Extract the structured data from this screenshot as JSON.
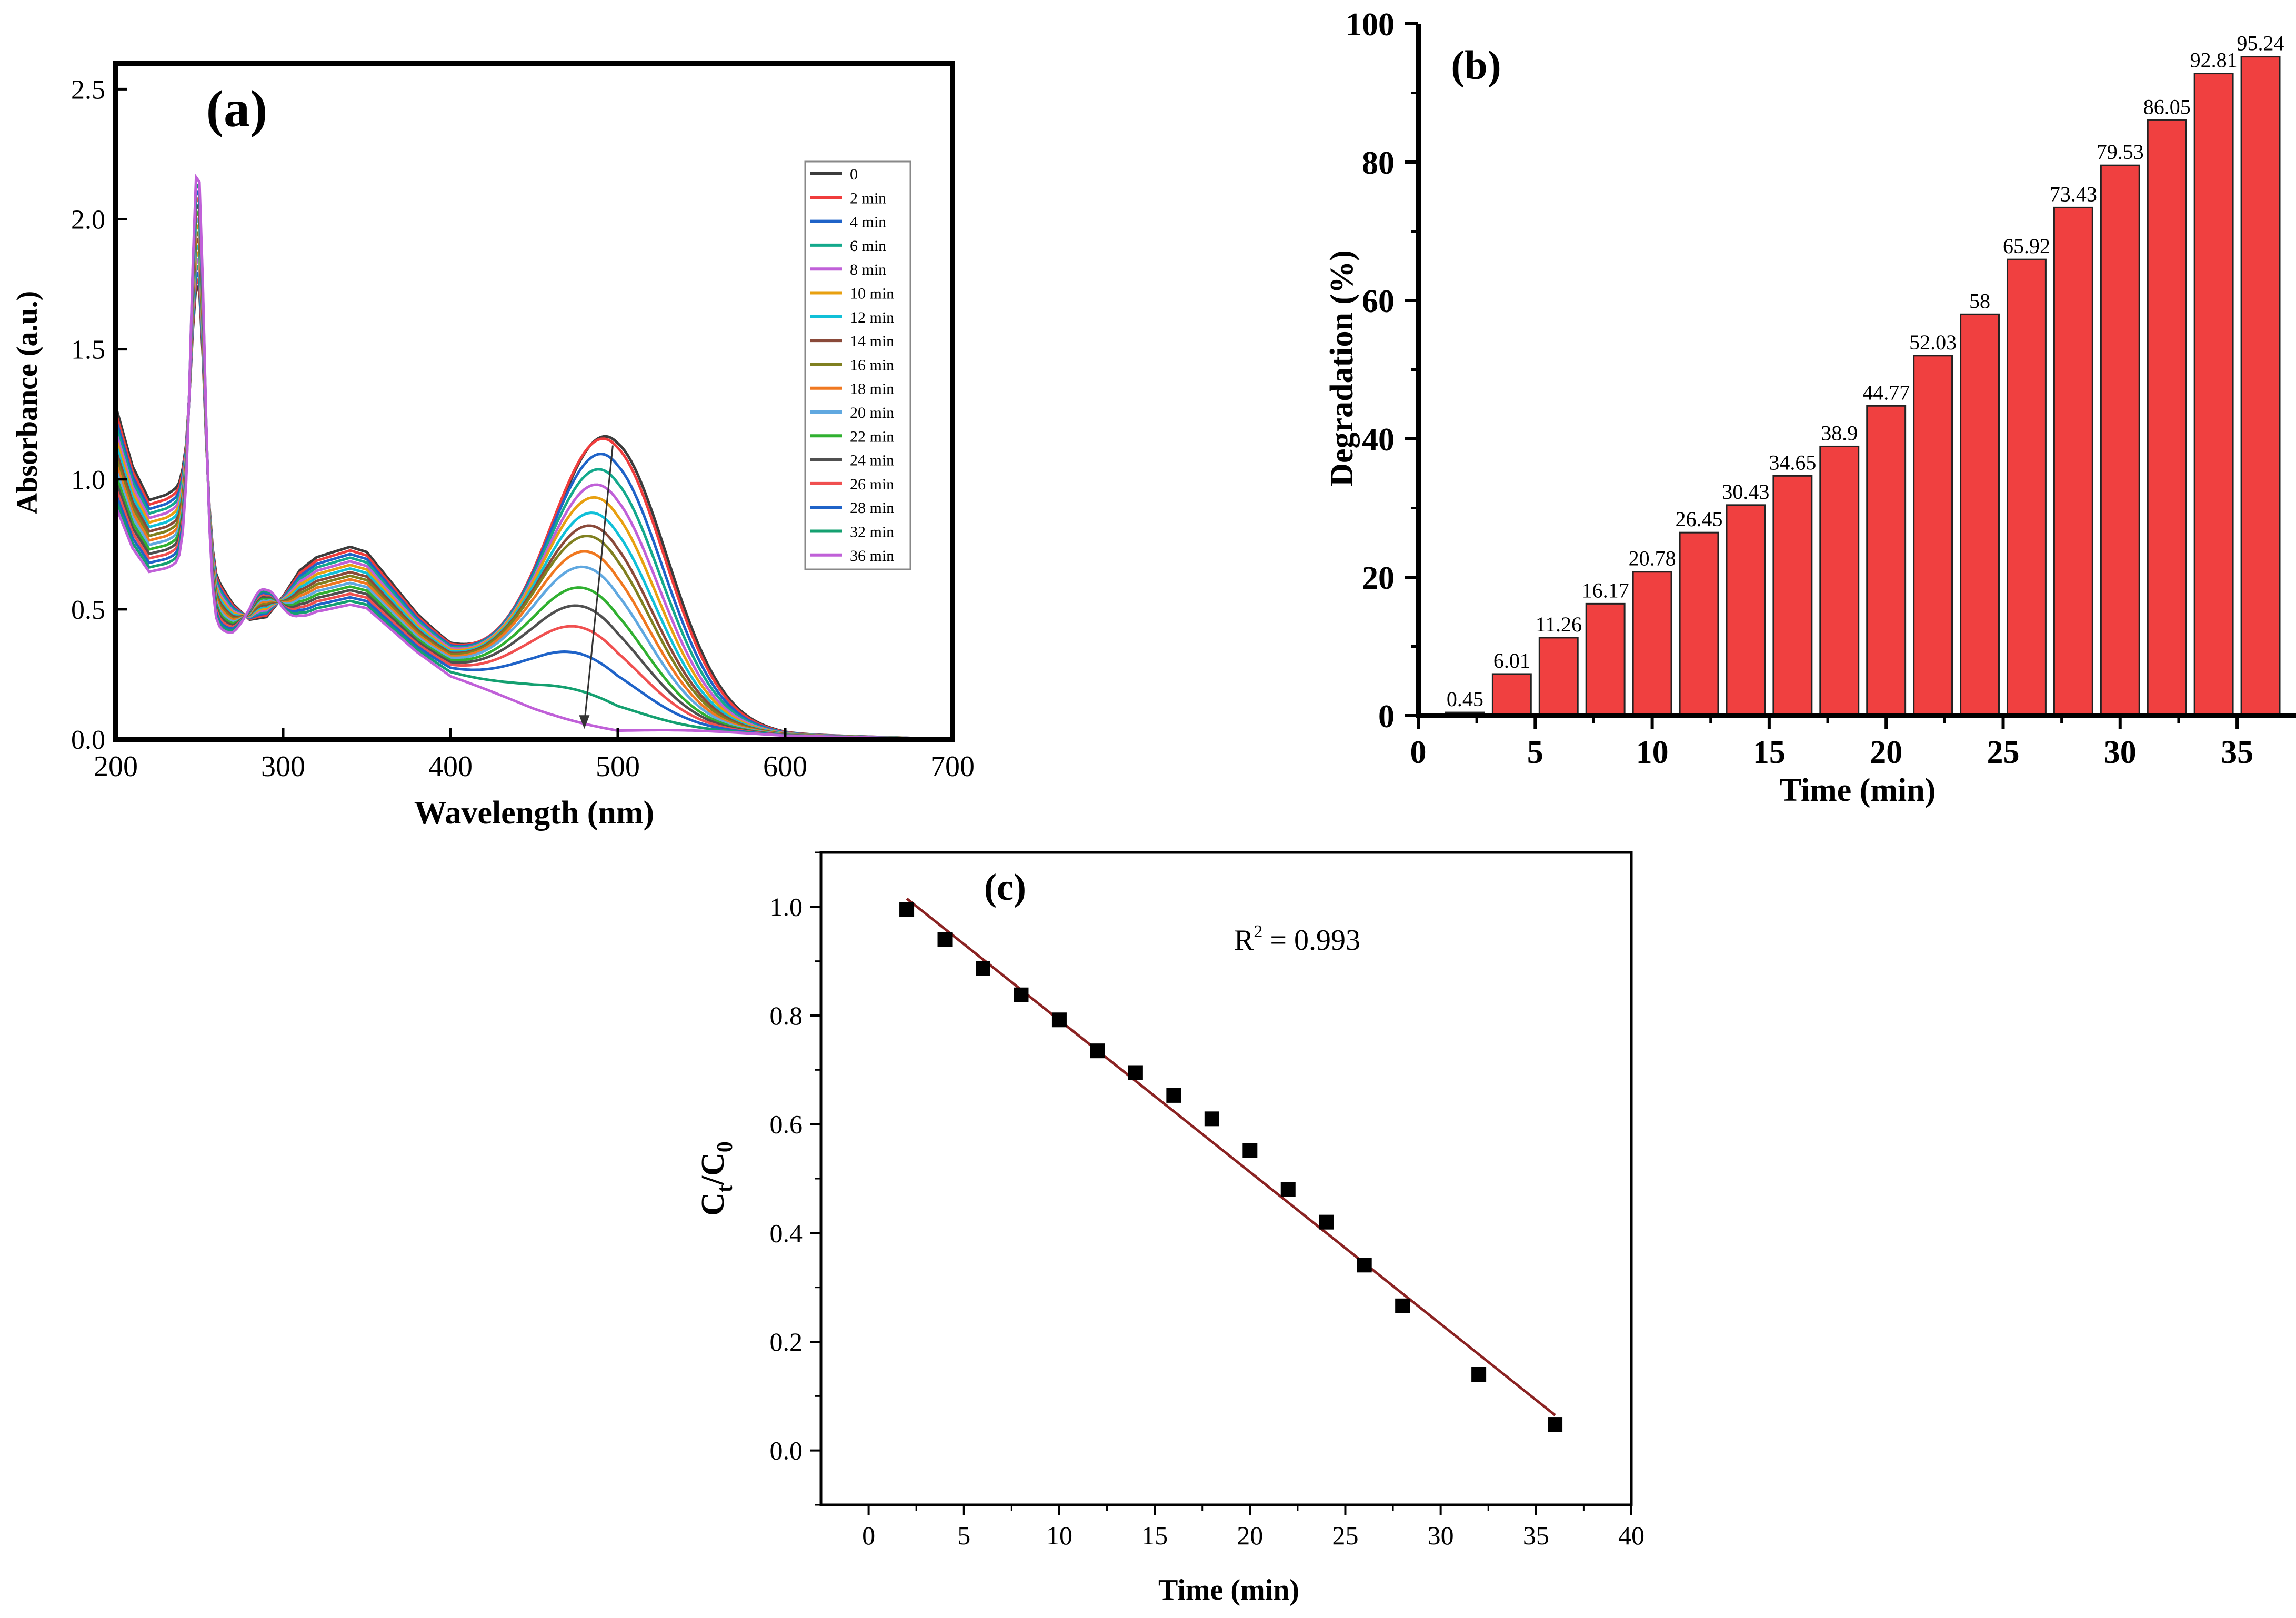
{
  "chart_data": [
    {
      "type": "line",
      "panel_label": "(a)",
      "xlabel": "Wavelength (nm)",
      "ylabel": "Absorbance (a.u.)",
      "xlim": [
        200,
        700
      ],
      "ylim": [
        0,
        2.6
      ],
      "xticks": [
        "200",
        "300",
        "400",
        "500",
        "600",
        "700"
      ],
      "yticks": [
        "0.0",
        "0.5",
        "1.0",
        "1.5",
        "2.0",
        "2.5"
      ],
      "legend_position": "top-right",
      "baseline_curve": {
        "x": [
          200,
          210,
          220,
          230,
          240,
          250,
          260,
          270,
          280,
          290,
          300,
          310,
          320,
          330,
          340,
          350,
          360,
          380,
          400,
          450,
          500,
          600,
          700
        ],
        "y": [
          1.28,
          1.05,
          0.92,
          0.94,
          0.98,
          0.85,
          0.62,
          0.52,
          0.46,
          0.47,
          0.55,
          0.65,
          0.7,
          0.72,
          0.74,
          0.72,
          0.64,
          0.48,
          0.35,
          0.2,
          0.08,
          0.02,
          0.0
        ]
      },
      "series": [
        {
          "name": "0",
          "color": "#3c3c3c",
          "band_peak": 1.15
        },
        {
          "name": "2 min",
          "color": "#f03c3c",
          "band_peak": 1.14
        },
        {
          "name": "4 min",
          "color": "#1f63c8",
          "band_peak": 1.08
        },
        {
          "name": "6 min",
          "color": "#14a98c",
          "band_peak": 1.02
        },
        {
          "name": "8 min",
          "color": "#c060d8",
          "band_peak": 0.96
        },
        {
          "name": "10 min",
          "color": "#e8a010",
          "band_peak": 0.91
        },
        {
          "name": "12 min",
          "color": "#10c0d8",
          "band_peak": 0.85
        },
        {
          "name": "14 min",
          "color": "#8a4a3a",
          "band_peak": 0.8
        },
        {
          "name": "16 min",
          "color": "#808020",
          "band_peak": 0.76
        },
        {
          "name": "18 min",
          "color": "#f07820",
          "band_peak": 0.7
        },
        {
          "name": "20 min",
          "color": "#60a8e0",
          "band_peak": 0.64
        },
        {
          "name": "22 min",
          "color": "#30b030",
          "band_peak": 0.56
        },
        {
          "name": "24 min",
          "color": "#505050",
          "band_peak": 0.49
        },
        {
          "name": "26 min",
          "color": "#f05050",
          "band_peak": 0.41
        },
        {
          "name": "28 min",
          "color": "#1f63c8",
          "band_peak": 0.31
        },
        {
          "name": "32 min",
          "color": "#14a070",
          "band_peak": 0.17
        },
        {
          "name": "36 min",
          "color": "#c060d8",
          "band_peak": 0.05
        }
      ]
    },
    {
      "type": "bar",
      "panel_label": "(b)",
      "xlabel": "Time (min)",
      "ylabel": "Degradation (%)",
      "xlim": [
        0,
        37
      ],
      "ylim": [
        0,
        100
      ],
      "xticks": [
        "0",
        "5",
        "10",
        "15",
        "20",
        "25",
        "30",
        "35"
      ],
      "yticks": [
        "0",
        "20",
        "40",
        "60",
        "80",
        "100"
      ],
      "x": [
        2,
        4,
        6,
        8,
        10,
        12,
        14,
        16,
        18,
        20,
        22,
        24,
        26,
        28,
        30,
        32,
        34,
        36
      ],
      "values": [
        0.45,
        6.01,
        11.26,
        16.17,
        20.78,
        26.45,
        30.43,
        34.65,
        38.9,
        44.77,
        52.03,
        58,
        65.92,
        73.43,
        79.53,
        86.05,
        92.81,
        95.24
      ],
      "labels": [
        "0.45",
        "6.01",
        "11.26",
        "16.17",
        "20.78",
        "26.45",
        "30.43",
        "34.65",
        "38.9",
        "44.77",
        "52.03",
        "58",
        "65.92",
        "73.43",
        "79.53",
        "86.05",
        "92.81",
        "95.24"
      ],
      "bar_color": "#f04040"
    },
    {
      "type": "scatter",
      "panel_label": "(c)",
      "xlabel": "Time (min)",
      "ylabel_main": "C",
      "ylabel_sub1": "t",
      "ylabel_sep": "/C",
      "ylabel_sub2": "0",
      "annotation_main": "R",
      "annotation_sup": "2",
      "annotation_rest": " = 0.993",
      "xlim": [
        -2.5,
        40
      ],
      "ylim": [
        -0.1,
        1.1
      ],
      "xticks": [
        "0",
        "5",
        "10",
        "15",
        "20",
        "25",
        "30",
        "35",
        "40"
      ],
      "yticks": [
        "0.0",
        "0.2",
        "0.4",
        "0.6",
        "0.8",
        "1.0"
      ],
      "x": [
        2,
        4,
        6,
        8,
        10,
        12,
        14,
        16,
        18,
        20,
        22,
        24,
        26,
        28,
        32,
        36
      ],
      "y": [
        0.995,
        0.94,
        0.887,
        0.838,
        0.792,
        0.735,
        0.695,
        0.653,
        0.61,
        0.552,
        0.48,
        0.42,
        0.341,
        0.266,
        0.14,
        0.048
      ],
      "fit": {
        "x": [
          2,
          36
        ],
        "y": [
          1.015,
          0.065
        ],
        "color": "#8b2323"
      }
    }
  ]
}
